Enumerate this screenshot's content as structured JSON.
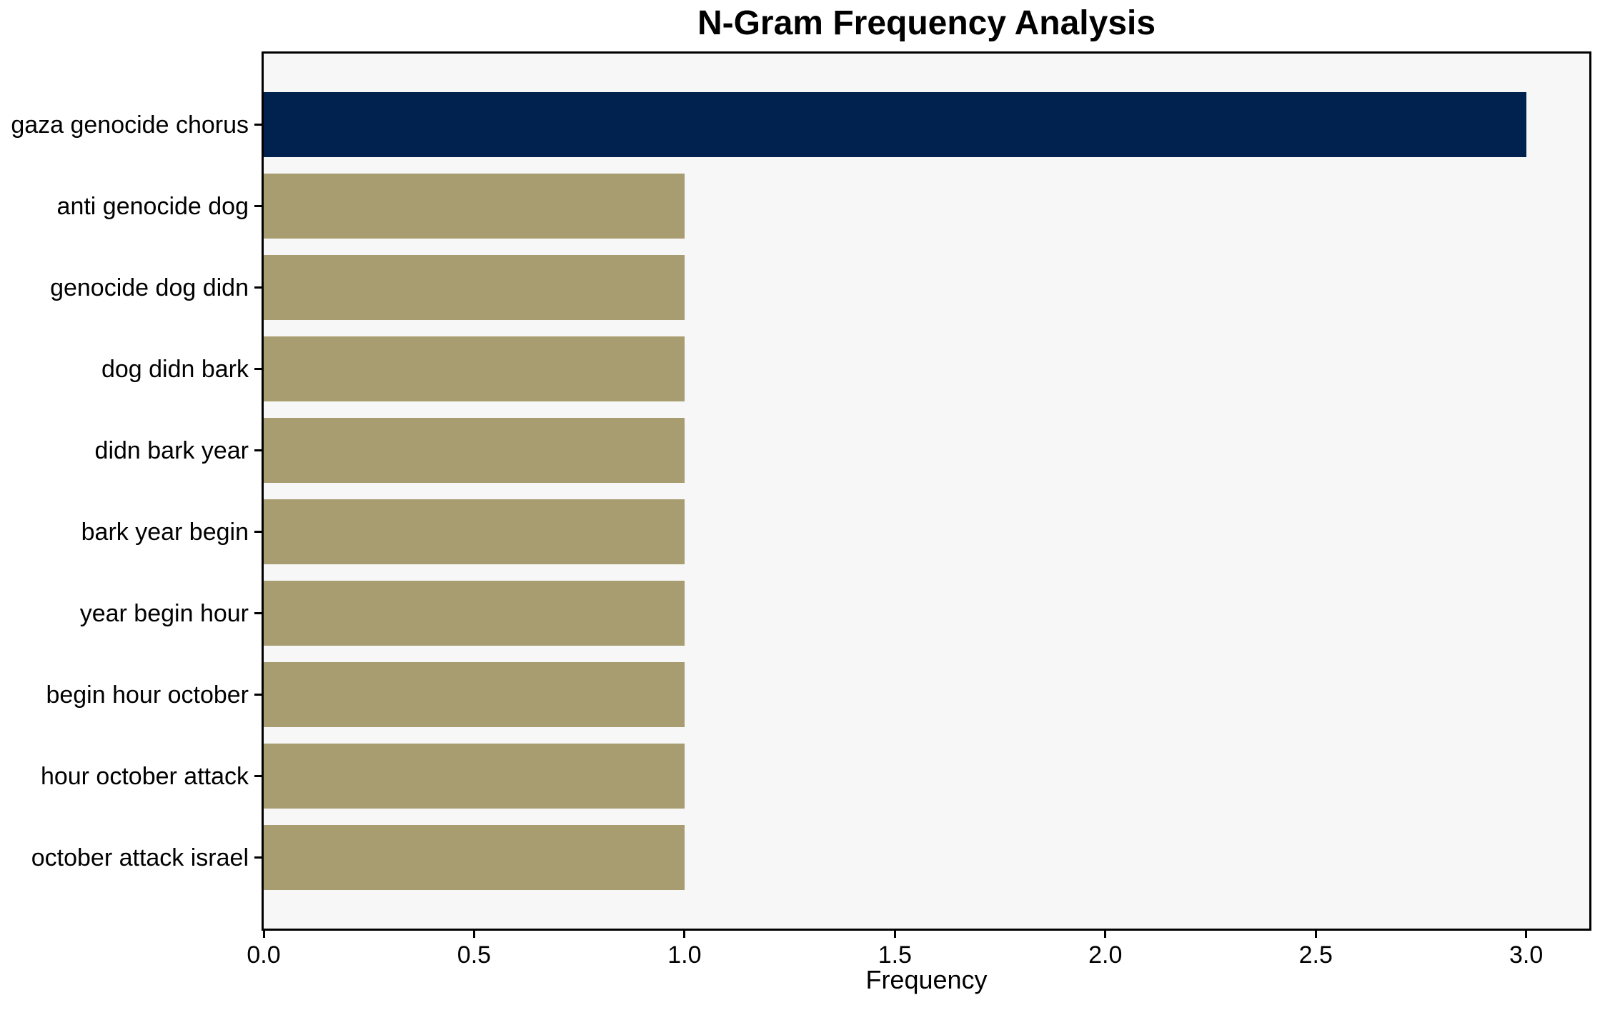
{
  "chart_data": {
    "type": "bar",
    "orientation": "horizontal",
    "title": "N-Gram Frequency Analysis",
    "xlabel": "Frequency",
    "ylabel": "",
    "categories": [
      "gaza genocide chorus",
      "anti genocide dog",
      "genocide dog didn",
      "dog didn bark",
      "didn bark year",
      "bark year begin",
      "year begin hour",
      "begin hour october",
      "hour october attack",
      "october attack israel"
    ],
    "values": [
      3,
      1,
      1,
      1,
      1,
      1,
      1,
      1,
      1,
      1
    ],
    "bar_colors": [
      "#01224e",
      "#a89d70",
      "#a89d70",
      "#a89d70",
      "#a89d70",
      "#a89d70",
      "#a89d70",
      "#a89d70",
      "#a89d70",
      "#a89d70"
    ],
    "xlim": [
      0,
      3.15
    ],
    "xtick_values": [
      0,
      0.5,
      1.0,
      1.5,
      2.0,
      2.5,
      3.0
    ],
    "xtick_labels": [
      "0.0",
      "0.5",
      "1.0",
      "1.5",
      "2.0",
      "2.5",
      "3.0"
    ],
    "grid": false,
    "legend": "none",
    "colors": {
      "highlight": "#01224e",
      "default_bar": "#a89d70",
      "plot_background": "#f7f7f7",
      "figure_background": "#ffffff",
      "axis": "#000000",
      "text": "#000000"
    }
  }
}
